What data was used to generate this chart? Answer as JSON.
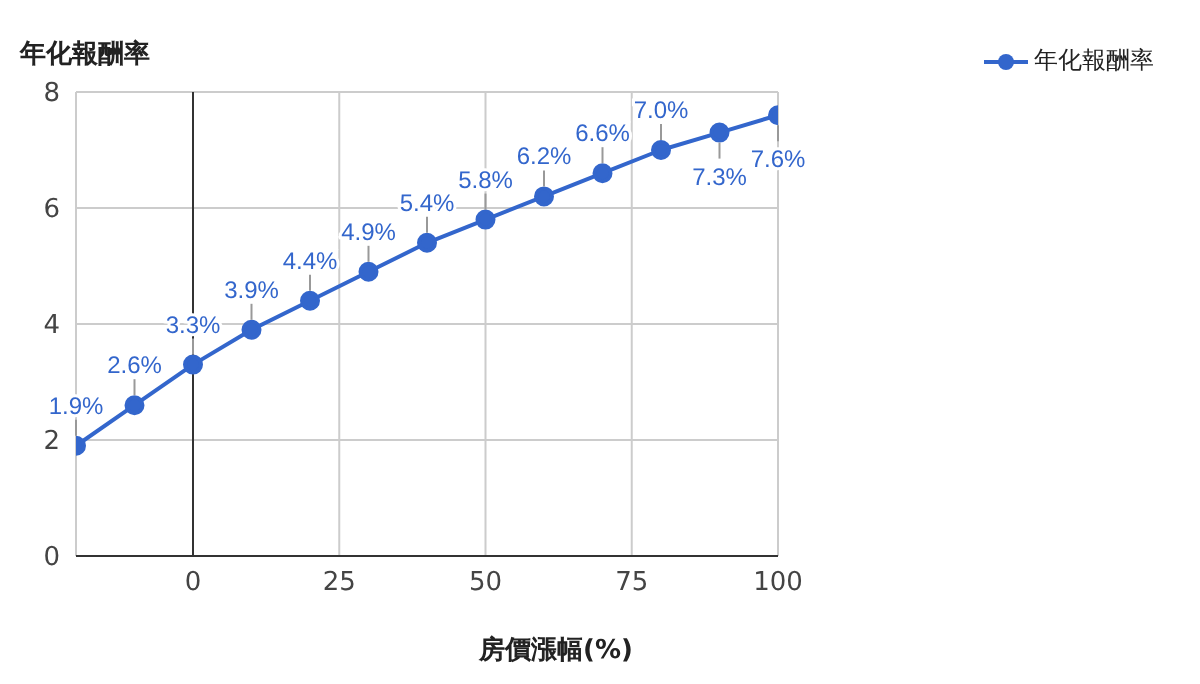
{
  "chart_data": {
    "type": "line",
    "ylabel": "年化報酬率",
    "xlabel": "房價漲幅(%)",
    "x": [
      -20,
      -10,
      0,
      10,
      20,
      30,
      40,
      50,
      60,
      70,
      80,
      90,
      100
    ],
    "series": [
      {
        "name": "年化報酬率",
        "color": "#3366cc",
        "values": [
          1.9,
          2.6,
          3.3,
          3.9,
          4.4,
          4.9,
          5.4,
          5.8,
          6.2,
          6.6,
          7.0,
          7.3,
          7.6
        ],
        "value_labels": [
          "1.9%",
          "2.6%",
          "3.3%",
          "3.9%",
          "4.4%",
          "4.9%",
          "5.4%",
          "5.8%",
          "6.2%",
          "6.6%",
          "7.0%",
          "7.3%",
          "7.6%"
        ]
      }
    ],
    "xlim": [
      -20,
      100
    ],
    "xticks": [
      0,
      25,
      50,
      75,
      100
    ],
    "ylim": [
      0,
      8
    ],
    "yticks": [
      0,
      2,
      4,
      6,
      8
    ],
    "ref_lines": [
      {
        "axis": "x",
        "value": 0,
        "color": "#333333"
      }
    ],
    "grid": true,
    "legend": "top right",
    "marker": "circle",
    "line_style": "solid"
  }
}
